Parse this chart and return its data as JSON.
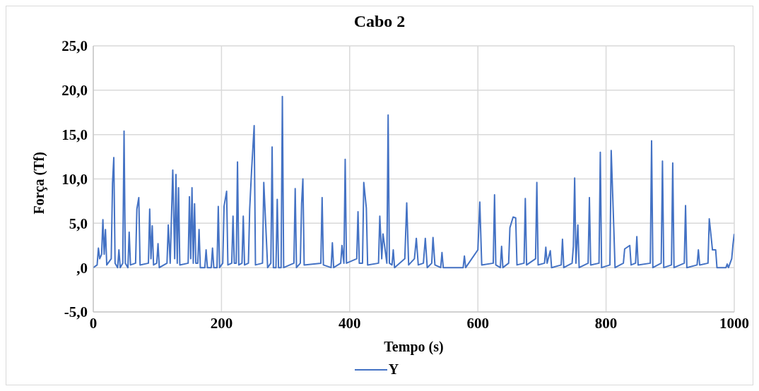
{
  "chart_data": {
    "type": "line",
    "title": "Cabo 2",
    "xlabel": "Tempo (s)",
    "ylabel": "Força (Tf)",
    "xlim": [
      0,
      1000
    ],
    "xticks": [
      0,
      200,
      400,
      600,
      800,
      1000
    ],
    "ylim": [
      -5,
      25
    ],
    "yticks": [
      {
        "value": -5,
        "label": "-5,0"
      },
      {
        "value": 0,
        "label": ",0"
      },
      {
        "value": 5,
        "label": "5,0"
      },
      {
        "value": 10,
        "label": "10,0"
      },
      {
        "value": 15,
        "label": "15,0"
      },
      {
        "value": 20,
        "label": "20,0"
      },
      {
        "value": 25,
        "label": "25,0"
      }
    ],
    "grid": true,
    "legend": "bottom",
    "marker": "none",
    "line_style": "solid",
    "series": [
      {
        "name": "Y",
        "color": "#4472c4",
        "x": [
          0,
          6,
          8,
          10,
          13,
          15,
          17,
          19,
          21,
          28,
          30,
          32,
          34,
          38,
          40,
          42,
          46,
          48,
          50,
          54,
          56,
          58,
          66,
          68,
          71,
          73,
          86,
          88,
          90,
          92,
          94,
          99,
          101,
          103,
          115,
          117,
          120,
          124,
          127,
          129,
          131,
          133,
          135,
          148,
          150,
          152,
          154,
          156,
          158,
          160,
          163,
          165,
          167,
          174,
          176,
          178,
          184,
          186,
          188,
          193,
          195,
          197,
          202,
          204,
          208,
          210,
          216,
          218,
          220,
          223,
          225,
          227,
          232,
          234,
          236,
          242,
          244,
          247,
          251,
          253,
          264,
          266,
          270,
          272,
          277,
          279,
          281,
          285,
          287,
          289,
          293,
          295,
          297,
          313,
          315,
          317,
          323,
          325,
          327,
          329,
          355,
          357,
          359,
          371,
          373,
          375,
          386,
          388,
          391,
          393,
          395,
          411,
          413,
          415,
          420,
          422,
          426,
          428,
          445,
          447,
          450,
          452,
          458,
          460,
          462,
          466,
          468,
          470,
          486,
          489,
          492,
          501,
          504,
          507,
          515,
          518,
          521,
          528,
          530,
          533,
          542,
          544,
          546,
          577,
          579,
          581,
          600,
          603,
          606,
          624,
          626,
          628,
          635,
          637,
          639,
          648,
          650,
          655,
          659,
          661,
          672,
          674,
          676,
          690,
          692,
          694,
          704,
          706,
          708,
          713,
          715,
          730,
          732,
          734,
          747,
          749,
          751,
          753,
          756,
          758,
          772,
          774,
          776,
          789,
          791,
          793,
          806,
          808,
          812,
          814,
          827,
          829,
          837,
          839,
          846,
          848,
          850,
          869,
          871,
          873,
          886,
          888,
          890,
          902,
          904,
          906,
          922,
          924,
          926,
          942,
          944,
          946,
          959,
          961,
          966,
          971,
          973,
          987,
          989,
          991,
          996,
          998,
          1000
        ],
        "values": [
          0,
          0.3,
          2.2,
          1.0,
          1.5,
          5.4,
          1.5,
          4.3,
          0.3,
          1.0,
          9.5,
          12.4,
          0.5,
          0,
          2.0,
          0,
          0.5,
          15.4,
          0.5,
          0,
          4.0,
          0.3,
          0.5,
          6.6,
          7.9,
          0.3,
          0.5,
          6.6,
          1.0,
          4.7,
          0.3,
          0.5,
          2.7,
          0,
          0.5,
          4.8,
          0.5,
          11.0,
          1.0,
          10.5,
          0.5,
          9.0,
          0.3,
          0.5,
          8.0,
          1.0,
          9.0,
          0.5,
          7.2,
          0.5,
          0.5,
          4.3,
          0,
          0,
          2.0,
          0,
          0,
          2.2,
          0,
          0,
          6.9,
          0,
          0.5,
          6.9,
          8.6,
          0.3,
          0.5,
          5.8,
          0.5,
          0.5,
          11.9,
          0.3,
          0.5,
          5.8,
          0.3,
          0.5,
          6.6,
          11.0,
          16.0,
          0.3,
          0.5,
          9.6,
          3.3,
          0,
          0.5,
          13.6,
          0,
          0,
          7.7,
          0,
          0,
          19.3,
          0,
          0.5,
          8.9,
          0,
          0.5,
          7.2,
          10.0,
          0.3,
          0.5,
          7.9,
          0.3,
          0,
          2.8,
          0,
          0.5,
          2.5,
          0.5,
          12.2,
          0.5,
          1.0,
          6.3,
          0.5,
          0.5,
          9.6,
          6.7,
          0.3,
          0.5,
          5.8,
          1.0,
          3.8,
          0.5,
          17.2,
          0.5,
          0.3,
          2.0,
          0,
          1.0,
          7.3,
          0.3,
          1.0,
          3.3,
          0.3,
          0.5,
          3.3,
          0,
          0.5,
          3.4,
          0.3,
          0,
          1.7,
          0,
          0,
          1.3,
          0,
          2.0,
          7.4,
          0.3,
          0.5,
          8.2,
          0.3,
          0,
          2.4,
          0,
          0.5,
          4.5,
          5.7,
          5.6,
          0.3,
          0.5,
          7.8,
          0.3,
          1.0,
          9.6,
          0.3,
          0.5,
          2.3,
          0.5,
          1.9,
          0,
          0.3,
          3.2,
          0,
          0.5,
          2.4,
          10.1,
          0.5,
          4.8,
          0,
          0.5,
          7.9,
          0.3,
          0.5,
          13.0,
          0,
          0.3,
          13.2,
          4.6,
          0,
          0.5,
          2.1,
          2.5,
          0.3,
          0.5,
          3.5,
          0.3,
          0.5,
          14.3,
          0,
          0.5,
          12.0,
          0,
          0.3,
          11.8,
          0,
          0.5,
          7.0,
          0,
          0.3,
          2.0,
          0.3,
          0.5,
          5.5,
          2.0,
          2.0,
          0,
          0,
          0.4,
          0,
          1.0,
          2.6,
          3.8
        ]
      }
    ]
  }
}
